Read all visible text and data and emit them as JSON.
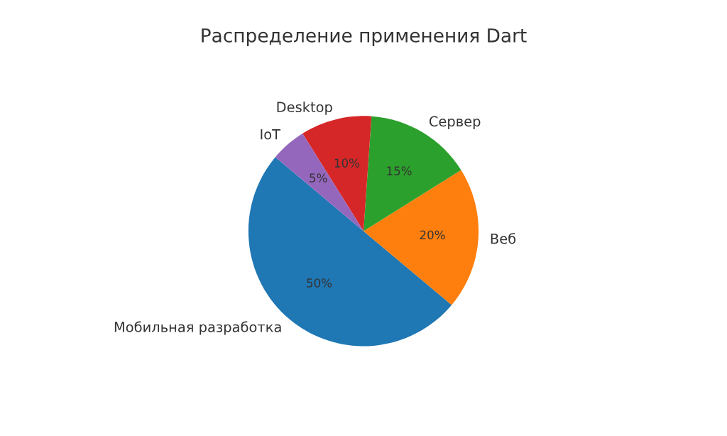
{
  "chart_data": {
    "type": "pie",
    "title": "Распределение применения Dart",
    "categories": [
      "Мобильная разработка",
      "Веб",
      "Сервер",
      "Desktop",
      "IoT"
    ],
    "values": [
      50,
      20,
      15,
      10,
      5
    ],
    "colors": [
      "#1f77b4",
      "#ff7f0e",
      "#2ca02c",
      "#d62728",
      "#9467bd"
    ],
    "value_labels": [
      "50%",
      "20%",
      "15%",
      "10%",
      "5%"
    ]
  }
}
